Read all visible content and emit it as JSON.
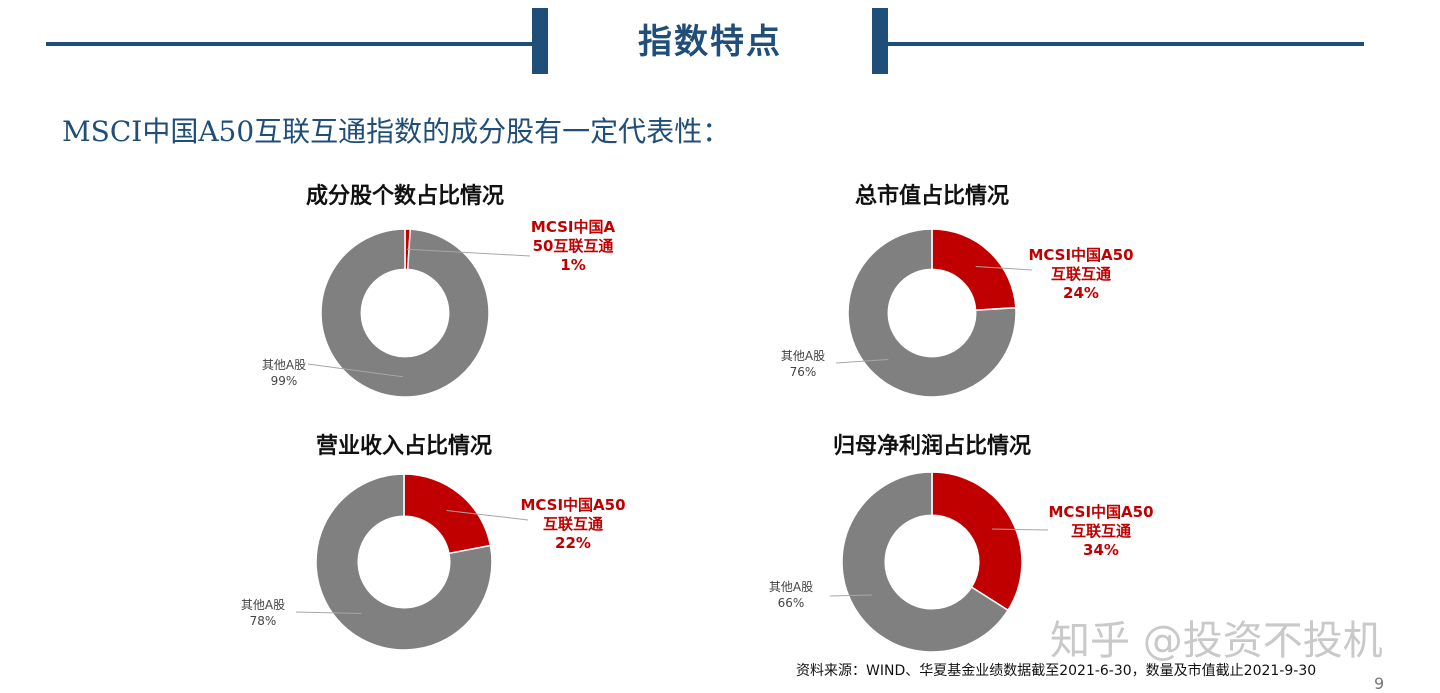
{
  "header": {
    "title": "指数特点"
  },
  "subtitle": "MSCI中国A50互联互通指数的成分股有一定代表性：",
  "chart_data": [
    {
      "type": "pie",
      "title": "成分股个数占比情况",
      "slices": [
        {
          "name": "MCSI中国A50互联互通",
          "value": 1,
          "label": "1%"
        },
        {
          "name": "其他A股",
          "value": 99,
          "label": "99%"
        }
      ],
      "colors": [
        "#c00000",
        "#808080"
      ]
    },
    {
      "type": "pie",
      "title": "总市值占比情况",
      "slices": [
        {
          "name": "MCSI中国A50互联互通",
          "value": 24,
          "label": "24%"
        },
        {
          "name": "其他A股",
          "value": 76,
          "label": "76%"
        }
      ],
      "colors": [
        "#c00000",
        "#808080"
      ]
    },
    {
      "type": "pie",
      "title": "营业收入占比情况",
      "slices": [
        {
          "name": "MCSI中国A50互联互通",
          "value": 22,
          "label": "22%"
        },
        {
          "name": "其他A股",
          "value": 78,
          "label": "78%"
        }
      ],
      "colors": [
        "#c00000",
        "#808080"
      ]
    },
    {
      "type": "pie",
      "title": "归母净利润占比情况",
      "slices": [
        {
          "name": "MCSI中国A50互联互通",
          "value": 34,
          "label": "34%"
        },
        {
          "name": "其他A股",
          "value": 66,
          "label": "66%"
        }
      ],
      "colors": [
        "#c00000",
        "#808080"
      ]
    }
  ],
  "footer": {
    "source": "资料来源：WIND、华夏基金业绩数据截至2021-6-30，数量及市值截止2021-9-30",
    "watermark": "知乎 @投资不投机",
    "page_number": "9"
  }
}
